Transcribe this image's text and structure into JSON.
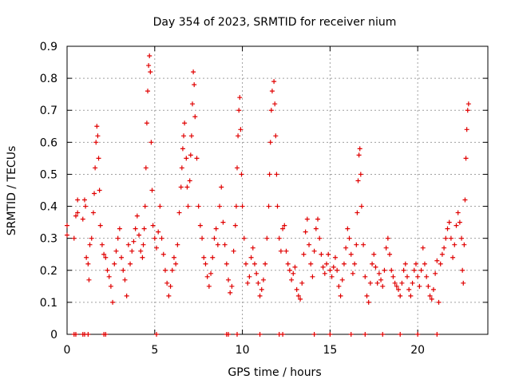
{
  "chart_data": {
    "type": "scatter",
    "title": "Day 354 of 2023, SRMTID for receiver nium",
    "xlabel": "GPS time / hours",
    "ylabel": "SRMTID / TECUs",
    "xlim": [
      0,
      24
    ],
    "ylim": [
      0,
      0.9
    ],
    "xticks": [
      0,
      5,
      10,
      15,
      20
    ],
    "yticks": [
      0,
      0.1,
      0.2,
      0.3,
      0.4,
      0.5,
      0.6,
      0.7,
      0.8,
      0.9
    ],
    "xtick_labels": [
      "0",
      "5",
      "10",
      "15",
      "20"
    ],
    "ytick_labels": [
      "0",
      "0.1",
      "0.2",
      "0.3",
      "0.4",
      "0.5",
      "0.6",
      "0.7",
      "0.8",
      "0.9"
    ],
    "grid": true,
    "marker": "+",
    "color": "#e00000",
    "series_note": "approximate trace of the point cloud: [hour, SRMTID] pairs",
    "series": [
      {
        "name": "SRMTID",
        "values": [
          [
            0.0,
            0.34
          ],
          [
            0.0,
            0.31
          ],
          [
            0.4,
            0.3
          ],
          [
            0.5,
            0.37
          ],
          [
            0.6,
            0.42
          ],
          [
            0.6,
            0.38
          ],
          [
            0.9,
            0.36
          ],
          [
            1.0,
            0.42
          ],
          [
            1.05,
            0.4
          ],
          [
            1.1,
            0.24
          ],
          [
            1.2,
            0.22
          ],
          [
            1.25,
            0.17
          ],
          [
            1.3,
            0.28
          ],
          [
            1.4,
            0.3
          ],
          [
            1.5,
            0.38
          ],
          [
            1.55,
            0.44
          ],
          [
            1.6,
            0.52
          ],
          [
            1.65,
            0.6
          ],
          [
            1.7,
            0.65
          ],
          [
            1.75,
            0.62
          ],
          [
            1.8,
            0.55
          ],
          [
            1.85,
            0.45
          ],
          [
            1.9,
            0.34
          ],
          [
            2.0,
            0.28
          ],
          [
            2.1,
            0.25
          ],
          [
            2.2,
            0.24
          ],
          [
            2.3,
            0.2
          ],
          [
            2.4,
            0.18
          ],
          [
            2.5,
            0.15
          ],
          [
            2.6,
            0.1
          ],
          [
            2.7,
            0.22
          ],
          [
            2.8,
            0.26
          ],
          [
            2.9,
            0.3
          ],
          [
            3.0,
            0.33
          ],
          [
            3.1,
            0.24
          ],
          [
            3.2,
            0.2
          ],
          [
            3.3,
            0.17
          ],
          [
            3.4,
            0.12
          ],
          [
            3.5,
            0.28
          ],
          [
            3.6,
            0.22
          ],
          [
            3.7,
            0.26
          ],
          [
            3.8,
            0.29
          ],
          [
            3.9,
            0.33
          ],
          [
            4.0,
            0.37
          ],
          [
            4.1,
            0.31
          ],
          [
            4.2,
            0.26
          ],
          [
            4.3,
            0.24
          ],
          [
            4.35,
            0.28
          ],
          [
            4.4,
            0.33
          ],
          [
            4.45,
            0.4
          ],
          [
            4.5,
            0.52
          ],
          [
            4.55,
            0.66
          ],
          [
            4.6,
            0.76
          ],
          [
            4.65,
            0.84
          ],
          [
            4.7,
            0.87
          ],
          [
            4.75,
            0.82
          ],
          [
            4.8,
            0.6
          ],
          [
            4.85,
            0.45
          ],
          [
            4.9,
            0.34
          ],
          [
            5.0,
            0.3
          ],
          [
            5.1,
            0.27
          ],
          [
            5.2,
            0.32
          ],
          [
            5.3,
            0.4
          ],
          [
            5.4,
            0.3
          ],
          [
            5.5,
            0.25
          ],
          [
            5.6,
            0.2
          ],
          [
            5.7,
            0.16
          ],
          [
            5.8,
            0.12
          ],
          [
            5.9,
            0.15
          ],
          [
            6.0,
            0.2
          ],
          [
            6.1,
            0.24
          ],
          [
            6.2,
            0.22
          ],
          [
            6.3,
            0.28
          ],
          [
            6.4,
            0.38
          ],
          [
            6.5,
            0.46
          ],
          [
            6.55,
            0.52
          ],
          [
            6.6,
            0.58
          ],
          [
            6.65,
            0.62
          ],
          [
            6.7,
            0.66
          ],
          [
            6.8,
            0.55
          ],
          [
            6.85,
            0.46
          ],
          [
            6.9,
            0.4
          ],
          [
            7.0,
            0.48
          ],
          [
            7.05,
            0.56
          ],
          [
            7.1,
            0.62
          ],
          [
            7.15,
            0.72
          ],
          [
            7.2,
            0.82
          ],
          [
            7.25,
            0.78
          ],
          [
            7.3,
            0.68
          ],
          [
            7.4,
            0.55
          ],
          [
            7.5,
            0.4
          ],
          [
            7.6,
            0.34
          ],
          [
            7.7,
            0.3
          ],
          [
            7.8,
            0.24
          ],
          [
            7.9,
            0.22
          ],
          [
            8.0,
            0.18
          ],
          [
            8.1,
            0.15
          ],
          [
            8.2,
            0.19
          ],
          [
            8.3,
            0.24
          ],
          [
            8.4,
            0.3
          ],
          [
            8.5,
            0.33
          ],
          [
            8.6,
            0.28
          ],
          [
            8.7,
            0.4
          ],
          [
            8.8,
            0.46
          ],
          [
            8.9,
            0.35
          ],
          [
            9.0,
            0.28
          ],
          [
            9.1,
            0.22
          ],
          [
            9.2,
            0.17
          ],
          [
            9.3,
            0.13
          ],
          [
            9.4,
            0.15
          ],
          [
            9.5,
            0.26
          ],
          [
            9.6,
            0.34
          ],
          [
            9.65,
            0.4
          ],
          [
            9.7,
            0.52
          ],
          [
            9.75,
            0.62
          ],
          [
            9.8,
            0.7
          ],
          [
            9.85,
            0.74
          ],
          [
            9.9,
            0.64
          ],
          [
            9.95,
            0.5
          ],
          [
            10.0,
            0.4
          ],
          [
            10.1,
            0.3
          ],
          [
            10.2,
            0.22
          ],
          [
            10.3,
            0.16
          ],
          [
            10.4,
            0.18
          ],
          [
            10.5,
            0.24
          ],
          [
            10.6,
            0.27
          ],
          [
            10.7,
            0.22
          ],
          [
            10.8,
            0.19
          ],
          [
            10.9,
            0.16
          ],
          [
            11.0,
            0.12
          ],
          [
            11.1,
            0.14
          ],
          [
            11.2,
            0.17
          ],
          [
            11.3,
            0.22
          ],
          [
            11.4,
            0.3
          ],
          [
            11.5,
            0.4
          ],
          [
            11.55,
            0.5
          ],
          [
            11.6,
            0.6
          ],
          [
            11.65,
            0.7
          ],
          [
            11.7,
            0.76
          ],
          [
            11.8,
            0.79
          ],
          [
            11.85,
            0.72
          ],
          [
            11.9,
            0.62
          ],
          [
            11.95,
            0.5
          ],
          [
            12.0,
            0.4
          ],
          [
            12.1,
            0.3
          ],
          [
            12.2,
            0.26
          ],
          [
            12.3,
            0.33
          ],
          [
            12.4,
            0.34
          ],
          [
            12.5,
            0.26
          ],
          [
            12.6,
            0.22
          ],
          [
            12.7,
            0.2
          ],
          [
            12.8,
            0.17
          ],
          [
            12.9,
            0.19
          ],
          [
            13.0,
            0.21
          ],
          [
            13.1,
            0.14
          ],
          [
            13.2,
            0.12
          ],
          [
            13.3,
            0.11
          ],
          [
            13.4,
            0.16
          ],
          [
            13.5,
            0.25
          ],
          [
            13.6,
            0.32
          ],
          [
            13.7,
            0.36
          ],
          [
            13.8,
            0.28
          ],
          [
            13.9,
            0.22
          ],
          [
            14.0,
            0.18
          ],
          [
            14.1,
            0.26
          ],
          [
            14.2,
            0.33
          ],
          [
            14.3,
            0.36
          ],
          [
            14.4,
            0.3
          ],
          [
            14.5,
            0.25
          ],
          [
            14.6,
            0.21
          ],
          [
            14.7,
            0.19
          ],
          [
            14.8,
            0.22
          ],
          [
            14.9,
            0.25
          ],
          [
            15.0,
            0.2
          ],
          [
            15.1,
            0.18
          ],
          [
            15.2,
            0.21
          ],
          [
            15.3,
            0.24
          ],
          [
            15.4,
            0.2
          ],
          [
            15.5,
            0.15
          ],
          [
            15.6,
            0.12
          ],
          [
            15.7,
            0.17
          ],
          [
            15.8,
            0.22
          ],
          [
            15.9,
            0.27
          ],
          [
            16.0,
            0.33
          ],
          [
            16.1,
            0.3
          ],
          [
            16.2,
            0.25
          ],
          [
            16.3,
            0.19
          ],
          [
            16.4,
            0.22
          ],
          [
            16.5,
            0.28
          ],
          [
            16.55,
            0.38
          ],
          [
            16.6,
            0.48
          ],
          [
            16.65,
            0.56
          ],
          [
            16.7,
            0.58
          ],
          [
            16.75,
            0.5
          ],
          [
            16.8,
            0.4
          ],
          [
            16.9,
            0.28
          ],
          [
            17.0,
            0.18
          ],
          [
            17.1,
            0.12
          ],
          [
            17.2,
            0.1
          ],
          [
            17.3,
            0.16
          ],
          [
            17.4,
            0.22
          ],
          [
            17.5,
            0.25
          ],
          [
            17.6,
            0.21
          ],
          [
            17.7,
            0.16
          ],
          [
            17.8,
            0.19
          ],
          [
            17.9,
            0.17
          ],
          [
            18.0,
            0.15
          ],
          [
            18.1,
            0.2
          ],
          [
            18.2,
            0.27
          ],
          [
            18.3,
            0.3
          ],
          [
            18.4,
            0.25
          ],
          [
            18.5,
            0.2
          ],
          [
            18.6,
            0.18
          ],
          [
            18.7,
            0.16
          ],
          [
            18.8,
            0.15
          ],
          [
            18.9,
            0.14
          ],
          [
            19.0,
            0.12
          ],
          [
            19.1,
            0.16
          ],
          [
            19.2,
            0.2
          ],
          [
            19.3,
            0.22
          ],
          [
            19.4,
            0.18
          ],
          [
            19.5,
            0.14
          ],
          [
            19.6,
            0.12
          ],
          [
            19.7,
            0.16
          ],
          [
            19.8,
            0.2
          ],
          [
            19.9,
            0.22
          ],
          [
            20.0,
            0.18
          ],
          [
            20.1,
            0.15
          ],
          [
            20.2,
            0.2
          ],
          [
            20.3,
            0.27
          ],
          [
            20.4,
            0.22
          ],
          [
            20.5,
            0.18
          ],
          [
            20.6,
            0.15
          ],
          [
            20.7,
            0.12
          ],
          [
            20.8,
            0.11
          ],
          [
            20.9,
            0.14
          ],
          [
            21.0,
            0.19
          ],
          [
            21.1,
            0.23
          ],
          [
            21.2,
            0.1
          ],
          [
            21.3,
            0.22
          ],
          [
            21.4,
            0.25
          ],
          [
            21.5,
            0.27
          ],
          [
            21.6,
            0.3
          ],
          [
            21.7,
            0.33
          ],
          [
            21.8,
            0.35
          ],
          [
            21.9,
            0.3
          ],
          [
            22.0,
            0.24
          ],
          [
            22.1,
            0.28
          ],
          [
            22.2,
            0.34
          ],
          [
            22.3,
            0.38
          ],
          [
            22.4,
            0.35
          ],
          [
            22.5,
            0.3
          ],
          [
            22.55,
            0.2
          ],
          [
            22.6,
            0.16
          ],
          [
            22.65,
            0.28
          ],
          [
            22.7,
            0.42
          ],
          [
            22.75,
            0.55
          ],
          [
            22.8,
            0.64
          ],
          [
            22.85,
            0.7
          ],
          [
            22.9,
            0.72
          ]
        ]
      },
      {
        "name": "zero",
        "values": [
          [
            0.4,
            0
          ],
          [
            0.5,
            0
          ],
          [
            0.9,
            0
          ],
          [
            1.0,
            0
          ],
          [
            1.2,
            0
          ],
          [
            2.1,
            0
          ],
          [
            2.2,
            0
          ],
          [
            5.1,
            0
          ],
          [
            9.1,
            0
          ],
          [
            9.2,
            0
          ],
          [
            9.7,
            0
          ],
          [
            11.0,
            0
          ],
          [
            12.1,
            0
          ],
          [
            12.3,
            0
          ],
          [
            14.1,
            0
          ],
          [
            15.0,
            0
          ],
          [
            16.2,
            0
          ],
          [
            17.0,
            0
          ],
          [
            18.0,
            0
          ],
          [
            19.0,
            0
          ],
          [
            20.0,
            0
          ],
          [
            21.1,
            0
          ]
        ]
      }
    ]
  }
}
